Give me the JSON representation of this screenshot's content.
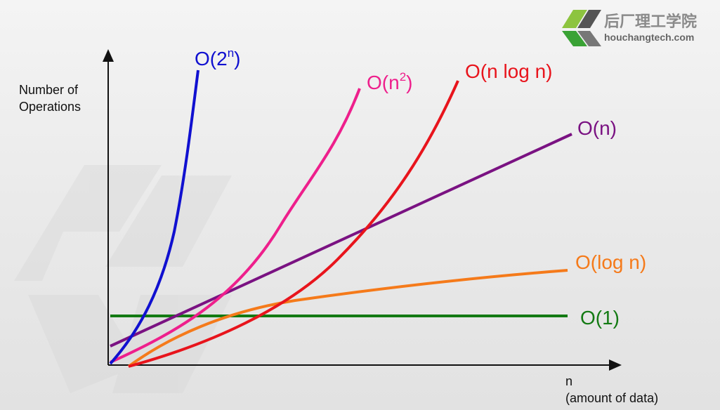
{
  "logo": {
    "chinese_name": "后厂理工学院",
    "url": "houchangtech.com"
  },
  "chart_data": {
    "type": "line",
    "ylabel_lines": [
      "Number of",
      "Operations"
    ],
    "xlabel_lines": [
      "n",
      "(amount of data)"
    ],
    "grid": false,
    "series": [
      {
        "name": "O(2ⁿ)",
        "label_base": "O(2",
        "label_sup": "n",
        "label_end": ")",
        "color": "#1010d0"
      },
      {
        "name": "O(n²)",
        "label_base": "O(n",
        "label_sup": "2",
        "label_end": ")",
        "color": "#ee1f8c"
      },
      {
        "name": "O(n log n)",
        "label_base": "O(n log n)",
        "label_sup": "",
        "label_end": "",
        "color": "#e8141c"
      },
      {
        "name": "O(n)",
        "label_base": "O(n)",
        "label_sup": "",
        "label_end": "",
        "color": "#7a1282"
      },
      {
        "name": "O(log n)",
        "label_base": "O(log n)",
        "label_sup": "",
        "label_end": "",
        "color": "#f57a1a"
      },
      {
        "name": "O(1)",
        "label_base": "O(1)",
        "label_sup": "",
        "label_end": "",
        "color": "#137a13"
      }
    ]
  }
}
